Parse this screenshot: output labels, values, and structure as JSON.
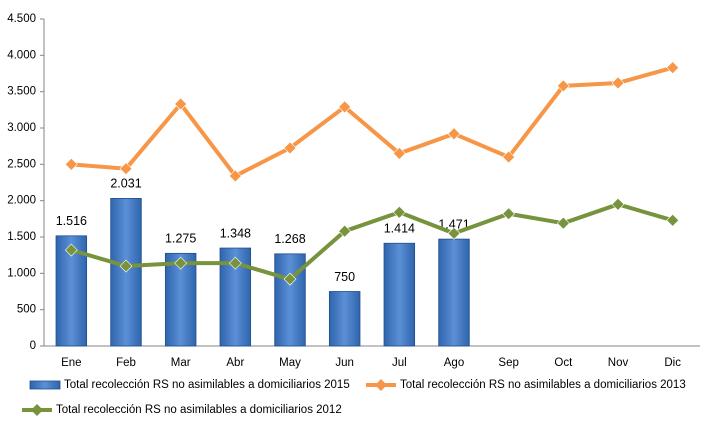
{
  "chart_data": {
    "type": "combo",
    "categories": [
      "Ene",
      "Feb",
      "Mar",
      "Abr",
      "May",
      "Jun",
      "Jul",
      "Ago",
      "Sep",
      "Oct",
      "Nov",
      "Dic"
    ],
    "ylim": [
      0,
      4500
    ],
    "yticks": [
      0,
      500,
      {
        "value": 1000,
        "label": "1.000"
      },
      {
        "value": 1500,
        "label": "1.500"
      },
      {
        "value": 2000,
        "label": "2.000"
      },
      {
        "value": 2500,
        "label": "2.500"
      },
      {
        "value": 3000,
        "label": "3.000"
      },
      {
        "value": 3500,
        "label": "3.500"
      },
      {
        "value": 4000,
        "label": "4.000"
      },
      {
        "value": 4500,
        "label": "4.500"
      }
    ],
    "grid": false,
    "legend": "bottom",
    "series": [
      {
        "name": "Total recolección RS no asimilables a domiciliarios 2015",
        "type": "bar",
        "color": "#4f81bd",
        "values": [
          1516,
          2031,
          1275,
          1348,
          1268,
          750,
          1414,
          1471,
          null,
          null,
          null,
          null
        ],
        "value_labels": [
          "1.516",
          "2.031",
          "1.275",
          "1.348",
          "1.268",
          "750",
          "1.414",
          "1.471",
          null,
          null,
          null,
          null
        ]
      },
      {
        "name": "Total recolección RS no asimilables a domiciliarios 2013",
        "type": "line",
        "color": "#f79646",
        "values": [
          2500,
          2440,
          3330,
          2340,
          2725,
          3290,
          2650,
          2920,
          2600,
          3580,
          3620,
          3830
        ]
      },
      {
        "name": "Total recolección RS no asimilables a domiciliarios 2012",
        "type": "line",
        "color": "#77933c",
        "values": [
          1320,
          1100,
          1140,
          1140,
          920,
          1580,
          1840,
          1550,
          1820,
          1690,
          1950,
          1730
        ]
      }
    ]
  }
}
